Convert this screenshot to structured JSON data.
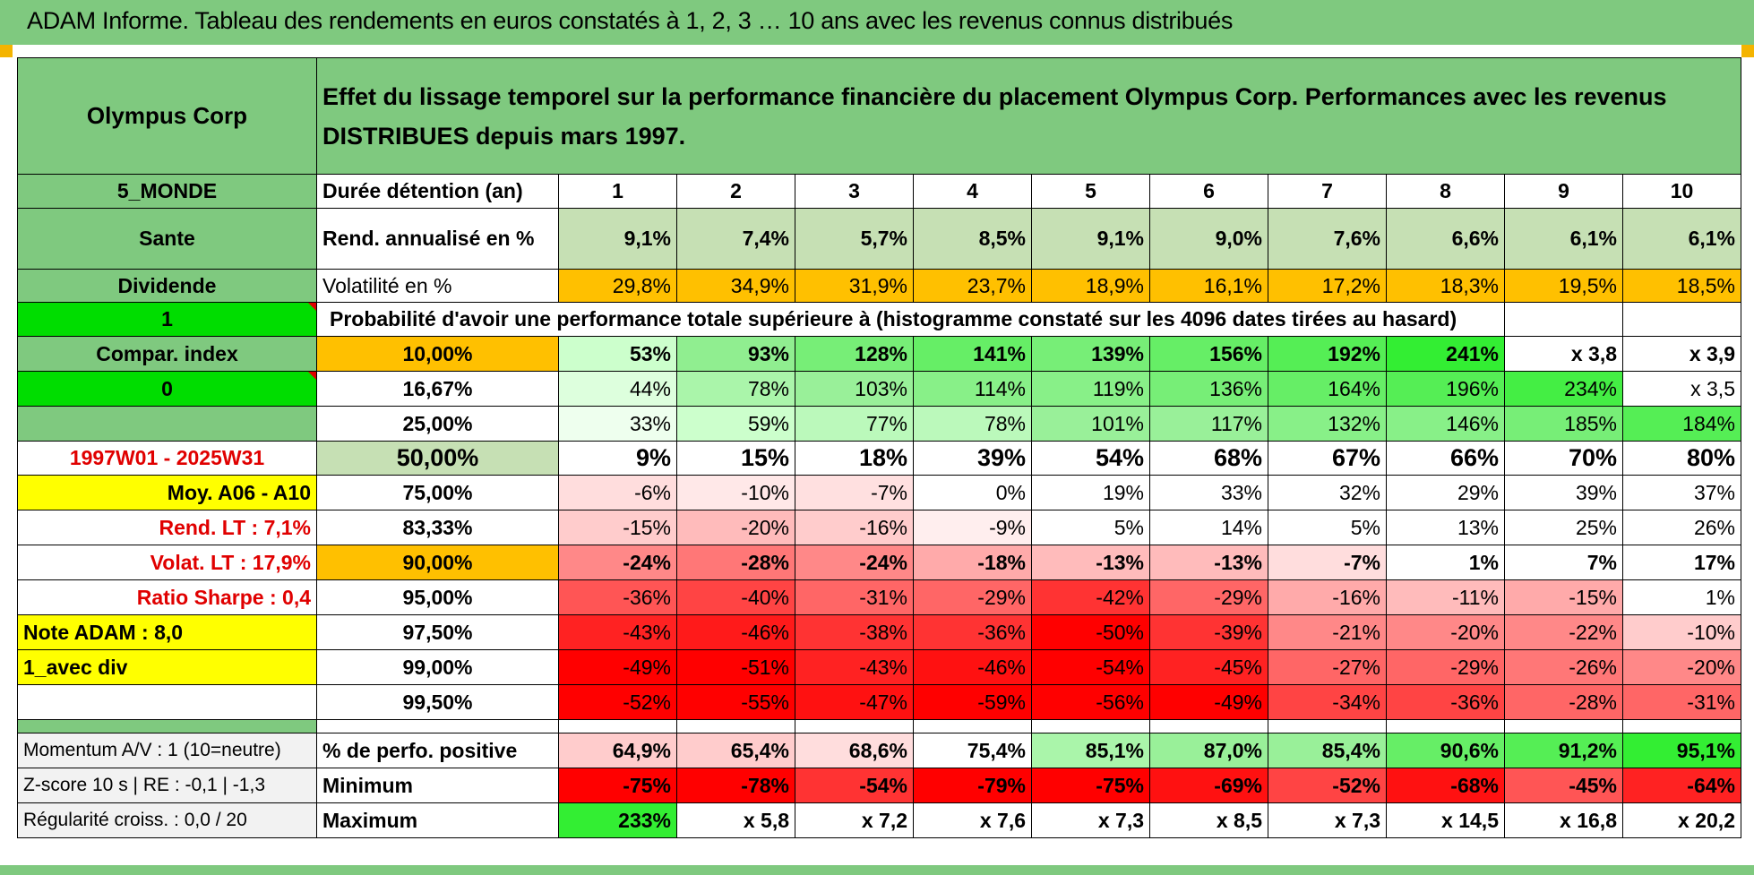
{
  "header": {
    "title": "ADAM Informe. Tableau des rendements en euros constatés à 1, 2, 3 … 10 ans avec les revenus connus distribués"
  },
  "left_panel": {
    "name": "Olympus Corp",
    "zone": "5_MONDE",
    "sector": "Sante",
    "type": "Dividende",
    "value_1": "1",
    "compar": "Compar. index",
    "value_0": "0",
    "period": "1997W01 - 2025W31",
    "moy": "Moy. A06 - A10",
    "rend_lt": "Rend. LT :    7,1%",
    "volat_lt": "Volat. LT :    17,9%",
    "sharpe": "Ratio Sharpe :     0,4",
    "note": "Note ADAM : 8,0",
    "mode": "1_avec div",
    "momentum": "Momentum A/V : 1 (10=neutre)",
    "zscore": "Z-score 10 s | RE : -0,1 | -1,3",
    "regularite": "Régularité croiss. : 0,0 / 20"
  },
  "description": "Effet du lissage temporel sur la performance financière du placement Olympus Corp. Performances avec les revenus DISTRIBUES depuis mars 1997.",
  "duration": {
    "label": "Durée détention (an)",
    "years": [
      "1",
      "2",
      "3",
      "4",
      "5",
      "6",
      "7",
      "8",
      "9",
      "10"
    ]
  },
  "rend": {
    "label": "Rend. annualisé en %",
    "values": [
      "9,1%",
      "7,4%",
      "5,7%",
      "8,5%",
      "9,1%",
      "9,0%",
      "7,6%",
      "6,6%",
      "6,1%",
      "6,1%"
    ]
  },
  "volat": {
    "label": "Volatilité en %",
    "values": [
      "29,8%",
      "34,9%",
      "31,9%",
      "23,7%",
      "18,9%",
      "16,1%",
      "17,2%",
      "18,3%",
      "19,5%",
      "18,5%"
    ]
  },
  "prob_header": "Probabilité d'avoir une performance totale supérieure à (histogramme constaté sur les 4096 dates tirées au hasard)",
  "prob_rows": [
    {
      "pct": "10,00%",
      "values": [
        "53%",
        "93%",
        "128%",
        "141%",
        "139%",
        "156%",
        "192%",
        "241%",
        "x 3,8",
        "x 3,9"
      ]
    },
    {
      "pct": "16,67%",
      "values": [
        "44%",
        "78%",
        "103%",
        "114%",
        "119%",
        "136%",
        "164%",
        "196%",
        "234%",
        "x 3,5"
      ]
    },
    {
      "pct": "25,00%",
      "values": [
        "33%",
        "59%",
        "77%",
        "78%",
        "101%",
        "117%",
        "132%",
        "146%",
        "185%",
        "184%"
      ]
    },
    {
      "pct": "50,00%",
      "values": [
        "9%",
        "15%",
        "18%",
        "39%",
        "54%",
        "68%",
        "67%",
        "66%",
        "70%",
        "80%"
      ]
    },
    {
      "pct": "75,00%",
      "values": [
        "-6%",
        "-10%",
        "-7%",
        "0%",
        "19%",
        "33%",
        "32%",
        "29%",
        "39%",
        "37%"
      ]
    },
    {
      "pct": "83,33%",
      "values": [
        "-15%",
        "-20%",
        "-16%",
        "-9%",
        "5%",
        "14%",
        "5%",
        "13%",
        "25%",
        "26%"
      ]
    },
    {
      "pct": "90,00%",
      "values": [
        "-24%",
        "-28%",
        "-24%",
        "-18%",
        "-13%",
        "-13%",
        "-7%",
        "1%",
        "7%",
        "17%"
      ]
    },
    {
      "pct": "95,00%",
      "values": [
        "-36%",
        "-40%",
        "-31%",
        "-29%",
        "-42%",
        "-29%",
        "-16%",
        "-11%",
        "-15%",
        "1%"
      ]
    },
    {
      "pct": "97,50%",
      "values": [
        "-43%",
        "-46%",
        "-38%",
        "-36%",
        "-50%",
        "-39%",
        "-21%",
        "-20%",
        "-22%",
        "-10%"
      ]
    },
    {
      "pct": "99,00%",
      "values": [
        "-49%",
        "-51%",
        "-43%",
        "-46%",
        "-54%",
        "-45%",
        "-27%",
        "-29%",
        "-26%",
        "-20%"
      ]
    },
    {
      "pct": "99,50%",
      "values": [
        "-52%",
        "-55%",
        "-47%",
        "-59%",
        "-56%",
        "-49%",
        "-34%",
        "-36%",
        "-28%",
        "-31%"
      ]
    }
  ],
  "prob_colors": [
    [
      "#ccffcc",
      "#90ee90",
      "#77ee77",
      "#66ee66",
      "#77ee77",
      "#66ee66",
      "#55ee55",
      "#33ee33",
      "#ffffff",
      "#ffffff"
    ],
    [
      "#ddffdd",
      "#aaf5aa",
      "#99f099",
      "#88f088",
      "#88f088",
      "#77ee77",
      "#66ee66",
      "#55ee55",
      "#44ee44",
      "#ffffff"
    ],
    [
      "#eeffee",
      "#ccffcc",
      "#bbf9bb",
      "#bbf9bb",
      "#99f099",
      "#99f099",
      "#88f088",
      "#88f088",
      "#77ee77",
      "#55ee55"
    ],
    [
      "#ffffff",
      "#ffffff",
      "#ffffff",
      "#ffffff",
      "#ffffff",
      "#ffffff",
      "#ffffff",
      "#ffffff",
      "#ffffff",
      "#ffffff"
    ],
    [
      "#ffdddd",
      "#ffe8e8",
      "#ffe0e0",
      "#ffffff",
      "#ffffff",
      "#ffffff",
      "#ffffff",
      "#ffffff",
      "#ffffff",
      "#ffffff"
    ],
    [
      "#ffcccc",
      "#ffbbbb",
      "#ffcccc",
      "#ffeeee",
      "#ffffff",
      "#ffffff",
      "#ffffff",
      "#ffffff",
      "#ffffff",
      "#ffffff"
    ],
    [
      "#ff8888",
      "#ff7777",
      "#ff8888",
      "#ffaaaa",
      "#ffbbbb",
      "#ffbbbb",
      "#ffdddd",
      "#ffffff",
      "#ffffff",
      "#ffffff"
    ],
    [
      "#ff5555",
      "#ff4444",
      "#ff6666",
      "#ff6666",
      "#ff3333",
      "#ff6666",
      "#ffaaaa",
      "#ffbbbb",
      "#ffaaaa",
      "#ffffff"
    ],
    [
      "#ff2222",
      "#ff1a1a",
      "#ff3333",
      "#ff3333",
      "#ff0000",
      "#ff3333",
      "#ff8888",
      "#ff8888",
      "#ff8888",
      "#ffcccc"
    ],
    [
      "#ff0000",
      "#ff0000",
      "#ff2222",
      "#ff1111",
      "#ff0000",
      "#ff2222",
      "#ff6666",
      "#ff6666",
      "#ff7777",
      "#ff8888"
    ],
    [
      "#ff0000",
      "#ff0000",
      "#ff1111",
      "#ff0000",
      "#ff0000",
      "#ff0000",
      "#ff4444",
      "#ff4444",
      "#ff6666",
      "#ff6666"
    ]
  ],
  "positive": {
    "label": "% de perfo. positive",
    "values": [
      "64,9%",
      "65,4%",
      "68,6%",
      "75,4%",
      "85,1%",
      "87,0%",
      "85,4%",
      "90,6%",
      "91,2%",
      "95,1%"
    ],
    "colors": [
      "#ffcccc",
      "#ffcccc",
      "#ffdddd",
      "#ffffff",
      "#aaf5aa",
      "#99f099",
      "#99f099",
      "#66ee66",
      "#55ee55",
      "#33ee33"
    ]
  },
  "minimum": {
    "label": "Minimum",
    "values": [
      "-75%",
      "-78%",
      "-54%",
      "-79%",
      "-75%",
      "-69%",
      "-52%",
      "-68%",
      "-45%",
      "-64%"
    ],
    "colors": [
      "#ff0000",
      "#ff0000",
      "#ff3333",
      "#ff0000",
      "#ff0000",
      "#ff1111",
      "#ff4444",
      "#ff1111",
      "#ff5555",
      "#ff2222"
    ]
  },
  "maximum": {
    "label": "Maximum",
    "values": [
      "233%",
      "x 5,8",
      "x 7,2",
      "x 7,6",
      "x 7,3",
      "x 8,5",
      "x 7,3",
      "x 14,5",
      "x 16,8",
      "x 20,2"
    ],
    "colors": [
      "#33ee33",
      "#ffffff",
      "#ffffff",
      "#ffffff",
      "#ffffff",
      "#ffffff",
      "#ffffff",
      "#ffffff",
      "#ffffff",
      "#ffffff"
    ]
  },
  "colors": {
    "header_green": "#7fc97f",
    "bright_green": "#00dd00",
    "yellow": "#ffff00",
    "orange": "#ffc000",
    "red_text": "#e00000"
  }
}
